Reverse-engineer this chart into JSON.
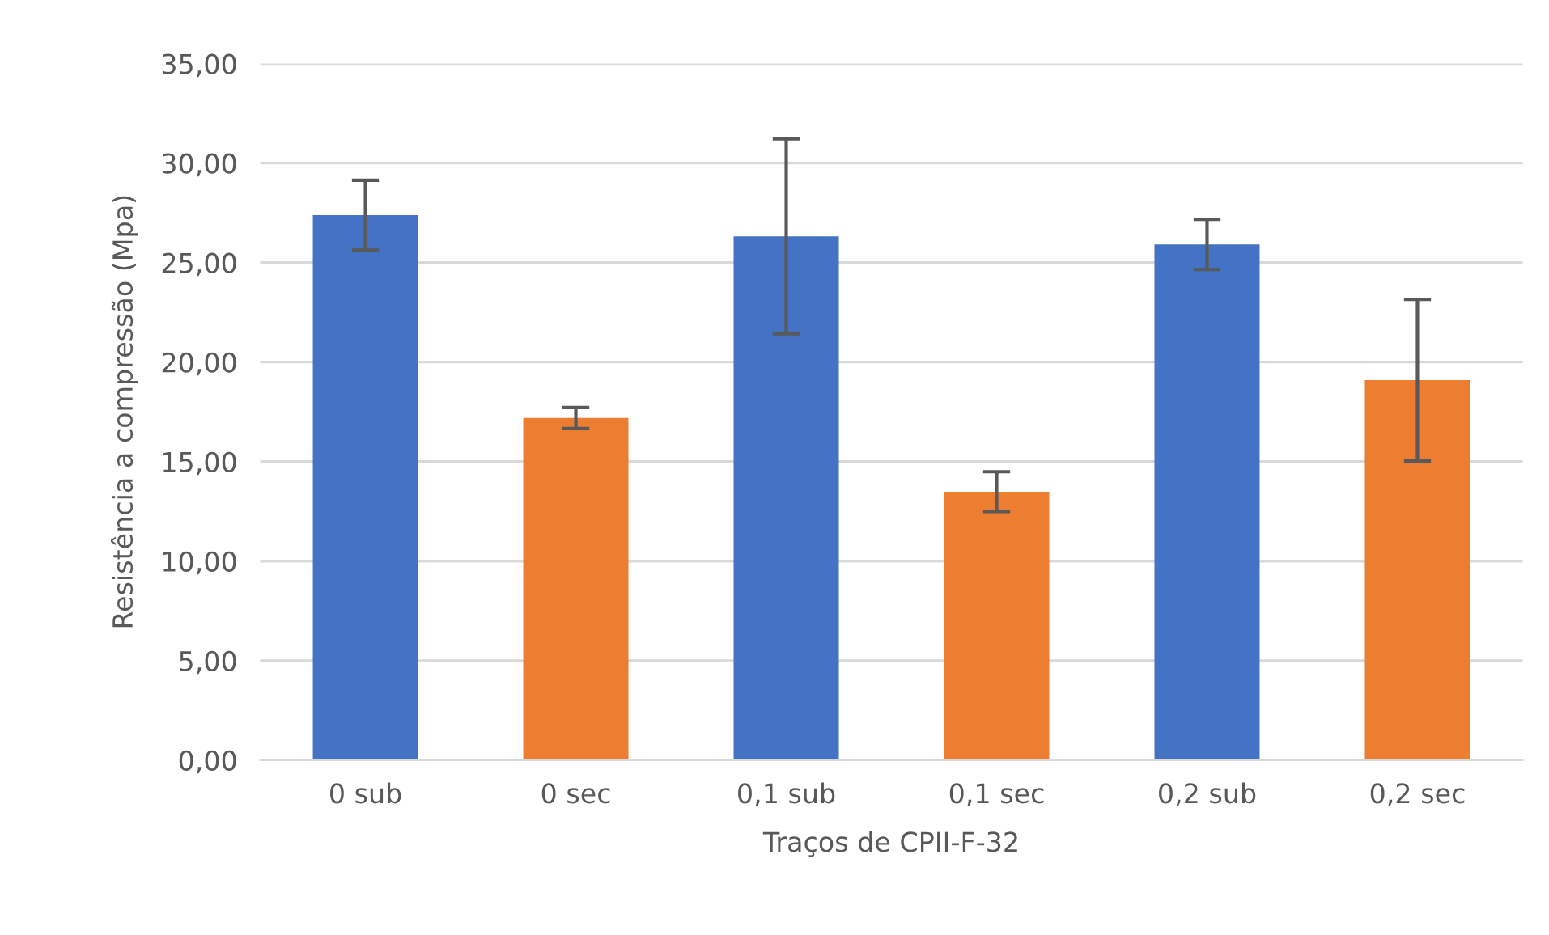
{
  "chart_data": {
    "type": "bar",
    "xlabel": "Traços de CPII-F-32",
    "ylabel": "Resistência a compressão (Mpa)",
    "categories": [
      "0 sub",
      "0 sec",
      "0,1 sub",
      "0,1 sec",
      "0,2 sub",
      "0,2 sec"
    ],
    "values": [
      27.38,
      17.19,
      26.32,
      13.49,
      25.91,
      19.09
    ],
    "errors": [
      1.76,
      0.53,
      4.9,
      1.0,
      1.26,
      4.06
    ],
    "colors": [
      "#4472c4",
      "#ed7d31",
      "#4472c4",
      "#ed7d31",
      "#4472c4",
      "#ed7d31"
    ],
    "ylim": [
      0,
      35
    ],
    "yticks": [
      {
        "value": 0,
        "label": "0,00"
      },
      {
        "value": 5,
        "label": "5,00"
      },
      {
        "value": 10,
        "label": "10,00"
      },
      {
        "value": 15,
        "label": "15,00"
      },
      {
        "value": 20,
        "label": "20,00"
      },
      {
        "value": 25,
        "label": "25,00"
      },
      {
        "value": 30,
        "label": "30,00"
      },
      {
        "value": 35,
        "label": "35,00"
      }
    ],
    "grid": "y"
  }
}
